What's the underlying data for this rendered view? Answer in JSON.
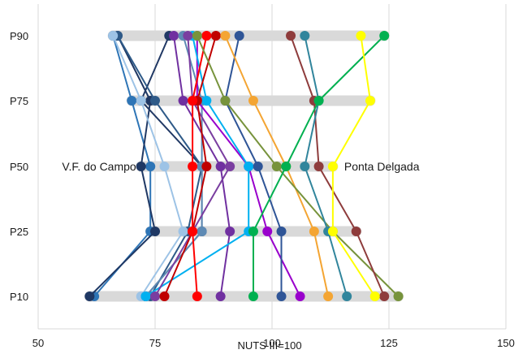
{
  "chart_data": {
    "type": "line",
    "title": "",
    "xlabel": "NUTS III=100",
    "ylabel": "",
    "xlim": [
      50,
      150
    ],
    "x_ticks": [
      50,
      75,
      100,
      125,
      150
    ],
    "x_tick_labels": [
      "50",
      "75",
      "100",
      "125",
      "150"
    ],
    "categories": [
      "P90",
      "P75",
      "P50",
      "P25",
      "P10"
    ],
    "range_bands": [
      {
        "category": "P90",
        "min": 66,
        "max": 124
      },
      {
        "category": "P75",
        "min": 70,
        "max": 121
      },
      {
        "category": "P50",
        "min": 72,
        "max": 113
      },
      {
        "category": "P25",
        "min": 74,
        "max": 118
      },
      {
        "category": "P10",
        "min": 61,
        "max": 127
      }
    ],
    "annotations": [
      {
        "text": "V.F. do Campo",
        "category": "P50",
        "x": 72
      },
      {
        "text": "Ponta Delgada",
        "category": "P50",
        "x": 113
      }
    ],
    "series": [
      {
        "color": "#2e75b6",
        "values": [
          66,
          70,
          74,
          74,
          62
        ]
      },
      {
        "color": "#1f3864",
        "values": [
          67,
          74,
          72,
          75,
          61
        ]
      },
      {
        "color": "#203864",
        "values": [
          78,
          72,
          85,
          85,
          73
        ]
      },
      {
        "color": "#2e5a88",
        "values": [
          67,
          75,
          85,
          82,
          74
        ]
      },
      {
        "color": "#9dc3e6",
        "values": [
          66,
          72,
          77,
          81,
          72
        ]
      },
      {
        "color": "#7030a0",
        "values": [
          79,
          81,
          89,
          91,
          89
        ]
      },
      {
        "color": "#5e8ab4",
        "values": [
          81,
          85,
          85,
          85,
          73
        ]
      },
      {
        "color": "#9900cc",
        "values": [
          84,
          84,
          95,
          99,
          106
        ]
      },
      {
        "color": "#00b0f0",
        "values": [
          83,
          86,
          95,
          95,
          73
        ]
      },
      {
        "color": "#7a3ea0",
        "values": [
          82,
          83,
          91,
          83,
          75
        ]
      },
      {
        "color": "#c00000",
        "values": [
          88,
          84,
          86,
          83,
          77
        ]
      },
      {
        "color": "#2f5597",
        "values": [
          93,
          90,
          97,
          102,
          102
        ]
      },
      {
        "color": "#f4a533",
        "values": [
          90,
          96,
          103,
          109,
          112
        ]
      },
      {
        "color": "#ff0000",
        "values": [
          86,
          83,
          83,
          83,
          84
        ]
      },
      {
        "color": "#77933c",
        "values": [
          84,
          90,
          101,
          113,
          127
        ]
      },
      {
        "color": "#8e3c3c",
        "values": [
          104,
          109,
          110,
          118,
          124
        ]
      },
      {
        "color": "#31859c",
        "values": [
          107,
          110,
          107,
          112,
          116
        ]
      },
      {
        "color": "#00b050",
        "values": [
          124,
          110,
          103,
          96,
          96
        ]
      },
      {
        "color": "#ffff00",
        "values": [
          119,
          121,
          113,
          113,
          122
        ]
      }
    ]
  }
}
